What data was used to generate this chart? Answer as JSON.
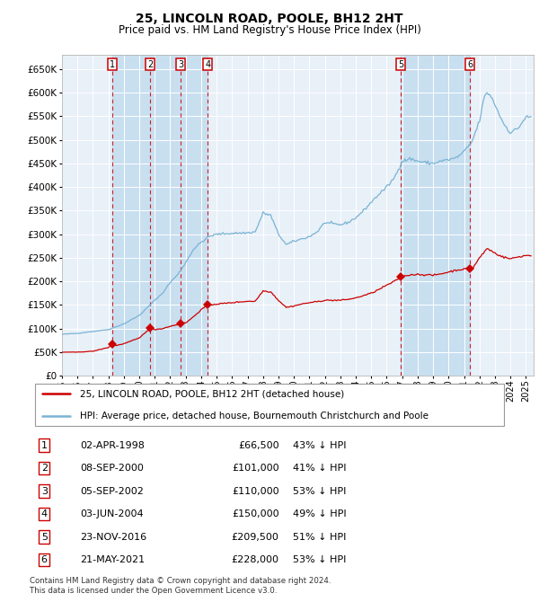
{
  "title": "25, LINCOLN ROAD, POOLE, BH12 2HT",
  "subtitle": "Price paid vs. HM Land Registry's House Price Index (HPI)",
  "title_fontsize": 10,
  "subtitle_fontsize": 8.5,
  "ylim": [
    0,
    680000
  ],
  "yticks": [
    0,
    50000,
    100000,
    150000,
    200000,
    250000,
    300000,
    350000,
    400000,
    450000,
    500000,
    550000,
    600000,
    650000
  ],
  "background_color": "#ffffff",
  "plot_bg_color": "#e8f0f8",
  "grid_color": "#ffffff",
  "hpi_color": "#7ab3d4",
  "price_color": "#cc0000",
  "shade_color": "#c8dff0",
  "vline_color": "#cc0000",
  "transactions": [
    {
      "num": 1,
      "price": 66500,
      "x_year": 1998.25
    },
    {
      "num": 2,
      "price": 101000,
      "x_year": 2000.69
    },
    {
      "num": 3,
      "price": 110000,
      "x_year": 2002.68
    },
    {
      "num": 4,
      "price": 150000,
      "x_year": 2004.42
    },
    {
      "num": 5,
      "price": 209500,
      "x_year": 2016.9
    },
    {
      "num": 6,
      "price": 228000,
      "x_year": 2021.39
    }
  ],
  "hpi_anchors": [
    [
      1995.0,
      88000
    ],
    [
      1996.0,
      90000
    ],
    [
      1997.0,
      94000
    ],
    [
      1998.0,
      98000
    ],
    [
      1999.0,
      110000
    ],
    [
      2000.0,
      128000
    ],
    [
      2001.0,
      160000
    ],
    [
      2001.5,
      175000
    ],
    [
      2002.0,
      198000
    ],
    [
      2002.5,
      215000
    ],
    [
      2003.0,
      240000
    ],
    [
      2003.5,
      268000
    ],
    [
      2004.0,
      283000
    ],
    [
      2004.5,
      295000
    ],
    [
      2005.0,
      300000
    ],
    [
      2006.0,
      302000
    ],
    [
      2007.0,
      303000
    ],
    [
      2007.5,
      305000
    ],
    [
      2008.0,
      345000
    ],
    [
      2008.5,
      340000
    ],
    [
      2009.0,
      300000
    ],
    [
      2009.5,
      278000
    ],
    [
      2010.0,
      285000
    ],
    [
      2010.5,
      290000
    ],
    [
      2011.0,
      295000
    ],
    [
      2011.5,
      305000
    ],
    [
      2012.0,
      325000
    ],
    [
      2012.5,
      322000
    ],
    [
      2013.0,
      320000
    ],
    [
      2013.5,
      325000
    ],
    [
      2014.0,
      335000
    ],
    [
      2014.5,
      350000
    ],
    [
      2015.0,
      368000
    ],
    [
      2015.5,
      385000
    ],
    [
      2016.0,
      400000
    ],
    [
      2016.5,
      420000
    ],
    [
      2017.0,
      455000
    ],
    [
      2017.5,
      460000
    ],
    [
      2018.0,
      455000
    ],
    [
      2018.5,
      452000
    ],
    [
      2019.0,
      450000
    ],
    [
      2019.5,
      455000
    ],
    [
      2020.0,
      458000
    ],
    [
      2020.5,
      462000
    ],
    [
      2021.0,
      475000
    ],
    [
      2021.5,
      495000
    ],
    [
      2022.0,
      540000
    ],
    [
      2022.3,
      590000
    ],
    [
      2022.5,
      600000
    ],
    [
      2022.7,
      595000
    ],
    [
      2023.0,
      575000
    ],
    [
      2023.5,
      538000
    ],
    [
      2024.0,
      515000
    ],
    [
      2024.5,
      525000
    ],
    [
      2025.0,
      548000
    ],
    [
      2025.4,
      548000
    ]
  ],
  "pp_anchors": [
    [
      1995.0,
      50000
    ],
    [
      1996.0,
      50000
    ],
    [
      1997.0,
      52000
    ],
    [
      1998.0,
      60000
    ],
    [
      1998.25,
      66500
    ],
    [
      1998.5,
      64000
    ],
    [
      1999.0,
      68000
    ],
    [
      2000.0,
      80000
    ],
    [
      2000.69,
      101000
    ],
    [
      2001.0,
      98000
    ],
    [
      2001.5,
      100000
    ],
    [
      2002.0,
      105000
    ],
    [
      2002.68,
      110000
    ],
    [
      2003.0,
      112000
    ],
    [
      2003.5,
      125000
    ],
    [
      2004.0,
      140000
    ],
    [
      2004.42,
      150000
    ],
    [
      2004.5,
      150000
    ],
    [
      2005.0,
      152000
    ],
    [
      2006.0,
      155000
    ],
    [
      2007.0,
      158000
    ],
    [
      2007.5,
      158000
    ],
    [
      2008.0,
      180000
    ],
    [
      2008.5,
      178000
    ],
    [
      2009.0,
      160000
    ],
    [
      2009.5,
      145000
    ],
    [
      2010.0,
      148000
    ],
    [
      2010.5,
      152000
    ],
    [
      2011.0,
      155000
    ],
    [
      2011.5,
      157000
    ],
    [
      2012.0,
      160000
    ],
    [
      2012.5,
      160000
    ],
    [
      2013.0,
      160000
    ],
    [
      2013.5,
      162000
    ],
    [
      2014.0,
      165000
    ],
    [
      2014.5,
      170000
    ],
    [
      2015.0,
      175000
    ],
    [
      2015.5,
      183000
    ],
    [
      2016.0,
      192000
    ],
    [
      2016.5,
      200000
    ],
    [
      2016.9,
      209500
    ],
    [
      2017.0,
      210000
    ],
    [
      2017.5,
      214000
    ],
    [
      2018.0,
      215000
    ],
    [
      2018.5,
      214000
    ],
    [
      2019.0,
      213000
    ],
    [
      2019.5,
      216000
    ],
    [
      2020.0,
      220000
    ],
    [
      2020.5,
      224000
    ],
    [
      2021.0,
      226000
    ],
    [
      2021.39,
      228000
    ],
    [
      2021.5,
      225000
    ],
    [
      2022.0,
      250000
    ],
    [
      2022.5,
      270000
    ],
    [
      2023.0,
      260000
    ],
    [
      2023.5,
      252000
    ],
    [
      2024.0,
      248000
    ],
    [
      2024.5,
      252000
    ],
    [
      2025.0,
      255000
    ],
    [
      2025.4,
      255000
    ]
  ],
  "table_rows": [
    {
      "num": 1,
      "date": "02-APR-1998",
      "price": "£66,500",
      "pct": "43% ↓ HPI"
    },
    {
      "num": 2,
      "date": "08-SEP-2000",
      "price": "£101,000",
      "pct": "41% ↓ HPI"
    },
    {
      "num": 3,
      "date": "05-SEP-2002",
      "price": "£110,000",
      "pct": "53% ↓ HPI"
    },
    {
      "num": 4,
      "date": "03-JUN-2004",
      "price": "£150,000",
      "pct": "49% ↓ HPI"
    },
    {
      "num": 5,
      "date": "23-NOV-2016",
      "price": "£209,500",
      "pct": "51% ↓ HPI"
    },
    {
      "num": 6,
      "date": "21-MAY-2021",
      "price": "£228,000",
      "pct": "53% ↓ HPI"
    }
  ],
  "legend_line1": "25, LINCOLN ROAD, POOLE, BH12 2HT (detached house)",
  "legend_line2": "HPI: Average price, detached house, Bournemouth Christchurch and Poole",
  "footnote1": "Contains HM Land Registry data © Crown copyright and database right 2024.",
  "footnote2": "This data is licensed under the Open Government Licence v3.0.",
  "xmin": 1995,
  "xmax": 2025.5
}
